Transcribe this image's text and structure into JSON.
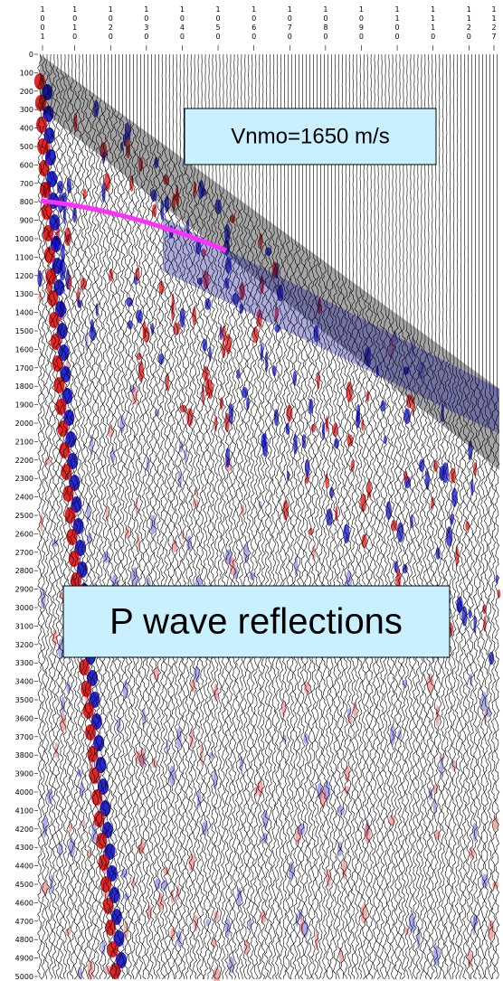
{
  "chart_data": {
    "type": "seismic",
    "xlim": [
      1001,
      1127
    ],
    "xticks": [
      1001,
      1010,
      1020,
      1030,
      1040,
      1050,
      1060,
      1070,
      1080,
      1090,
      1100,
      1110,
      1120,
      1127
    ],
    "ylim": [
      0,
      5000
    ],
    "yticks": [
      0,
      100,
      200,
      300,
      400,
      500,
      600,
      700,
      800,
      900,
      1000,
      1100,
      1200,
      1300,
      1400,
      1500,
      1600,
      1700,
      1800,
      1900,
      2000,
      2100,
      2200,
      2300,
      2400,
      2500,
      2600,
      2700,
      2800,
      2900,
      3000,
      3100,
      3200,
      3300,
      3400,
      3500,
      3600,
      3700,
      3800,
      3900,
      4000,
      4100,
      4200,
      4300,
      4400,
      4500,
      4600,
      4700,
      4800,
      4900,
      5000
    ],
    "annotations": [
      "Vnmo=1650 m/s",
      "P wave reflections"
    ]
  }
}
